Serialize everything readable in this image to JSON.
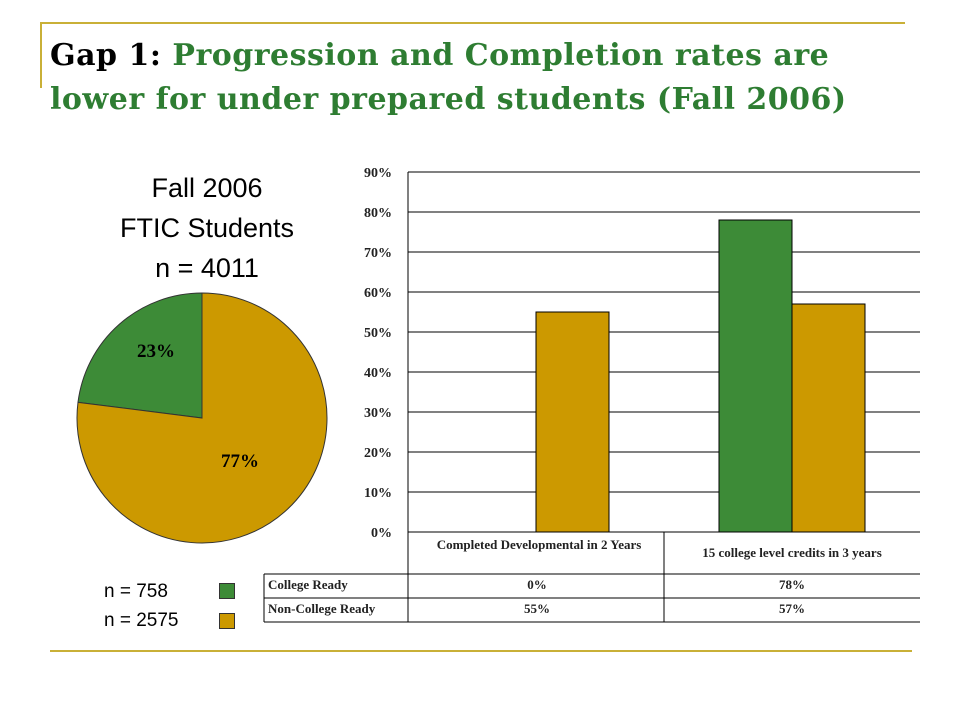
{
  "slide": {
    "title_gap": "Gap 1",
    "title_colon": ":",
    "title_rest_line1": "Progression and Completion rates are",
    "title_rest_line2": "lower for under prepared students (Fall 2006)"
  },
  "colors": {
    "college_ready": "#3d8b37",
    "non_college_ready": "#cc9900",
    "title_green": "#2e7d32",
    "rule_gold": "#c9b037"
  },
  "chart_data": [
    {
      "type": "pie",
      "title_lines": [
        "Fall 2006",
        "FTIC Students",
        "n = 4011"
      ],
      "slices": [
        {
          "label": "23%",
          "value": 23,
          "color": "#3d8b37"
        },
        {
          "label": "77%",
          "value": 77,
          "color": "#cc9900"
        }
      ],
      "legend": [
        {
          "label": "n = 758",
          "color": "#3d8b37"
        },
        {
          "label": "n = 2575",
          "color": "#cc9900"
        }
      ]
    },
    {
      "type": "bar",
      "categories": [
        "Completed Developmental in 2 Years",
        "15 college level credits in 3 years"
      ],
      "series": [
        {
          "name": "College Ready",
          "values": [
            0,
            78
          ],
          "labels": [
            "0%",
            "78%"
          ],
          "color": "#3d8b37"
        },
        {
          "name": "Non-College Ready",
          "values": [
            55,
            57
          ],
          "labels": [
            "55%",
            "57%"
          ],
          "color": "#cc9900"
        }
      ],
      "ylim": [
        0,
        90
      ],
      "yticks": [
        "0%",
        "10%",
        "20%",
        "30%",
        "40%",
        "50%",
        "60%",
        "70%",
        "80%",
        "90%"
      ],
      "grid": true,
      "data_table": true
    }
  ]
}
